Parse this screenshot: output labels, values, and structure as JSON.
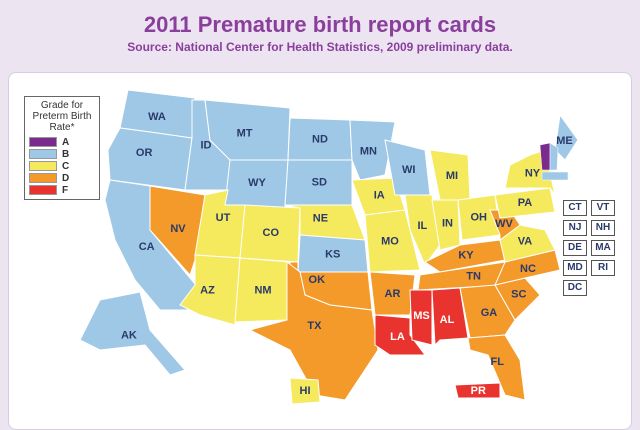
{
  "title": "2011 Premature birth report cards",
  "subtitle": "Source: National Center for Health Statistics, 2009 preliminary data.",
  "legend": {
    "title": "Grade for Preterm Birth Rate*",
    "items": [
      {
        "grade": "A",
        "color": "#7b2a8e"
      },
      {
        "grade": "B",
        "color": "#9ec8e6"
      },
      {
        "grade": "C",
        "color": "#f5e95e"
      },
      {
        "grade": "D",
        "color": "#f39a2a"
      },
      {
        "grade": "F",
        "color": "#e8332e"
      }
    ]
  },
  "states": [
    {
      "label": "WA",
      "grade": "B"
    },
    {
      "label": "OR",
      "grade": "B"
    },
    {
      "label": "CA",
      "grade": "B"
    },
    {
      "label": "NV",
      "grade": "D"
    },
    {
      "label": "ID",
      "grade": "B"
    },
    {
      "label": "MT",
      "grade": "B"
    },
    {
      "label": "WY",
      "grade": "B"
    },
    {
      "label": "UT",
      "grade": "C"
    },
    {
      "label": "CO",
      "grade": "C"
    },
    {
      "label": "AZ",
      "grade": "C"
    },
    {
      "label": "NM",
      "grade": "C"
    },
    {
      "label": "ND",
      "grade": "B"
    },
    {
      "label": "SD",
      "grade": "B"
    },
    {
      "label": "NE",
      "grade": "C"
    },
    {
      "label": "KS",
      "grade": "B"
    },
    {
      "label": "OK",
      "grade": "D"
    },
    {
      "label": "TX",
      "grade": "D"
    },
    {
      "label": "MN",
      "grade": "B"
    },
    {
      "label": "IA",
      "grade": "C"
    },
    {
      "label": "MO",
      "grade": "C"
    },
    {
      "label": "AR",
      "grade": "D"
    },
    {
      "label": "LA",
      "grade": "F"
    },
    {
      "label": "WI",
      "grade": "B"
    },
    {
      "label": "IL",
      "grade": "C"
    },
    {
      "label": "MI",
      "grade": "C"
    },
    {
      "label": "IN",
      "grade": "C"
    },
    {
      "label": "OH",
      "grade": "C"
    },
    {
      "label": "KY",
      "grade": "D"
    },
    {
      "label": "TN",
      "grade": "D"
    },
    {
      "label": "MS",
      "grade": "F"
    },
    {
      "label": "AL",
      "grade": "F"
    },
    {
      "label": "GA",
      "grade": "D"
    },
    {
      "label": "FL",
      "grade": "D"
    },
    {
      "label": "SC",
      "grade": "D"
    },
    {
      "label": "NC",
      "grade": "D"
    },
    {
      "label": "VA",
      "grade": "C"
    },
    {
      "label": "WV",
      "grade": "D"
    },
    {
      "label": "PA",
      "grade": "C"
    },
    {
      "label": "NY",
      "grade": "C"
    },
    {
      "label": "ME",
      "grade": "B"
    },
    {
      "label": "AK",
      "grade": "B"
    },
    {
      "label": "HI",
      "grade": "C"
    },
    {
      "label": "PR",
      "grade": "F"
    }
  ],
  "small_states": [
    {
      "label": "CT"
    },
    {
      "label": "VT",
      "grade": "A"
    },
    {
      "label": "NJ"
    },
    {
      "label": "NH",
      "grade": "B"
    },
    {
      "label": "DE"
    },
    {
      "label": "MA",
      "grade": "B"
    },
    {
      "label": "MD"
    },
    {
      "label": "RI"
    },
    {
      "label": "DC"
    }
  ]
}
